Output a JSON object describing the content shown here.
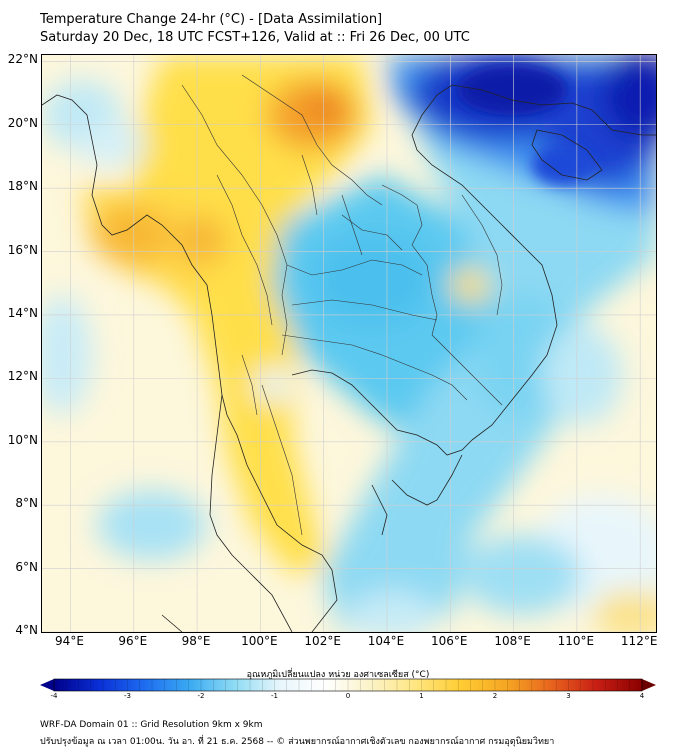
{
  "header": {
    "title_line1": "Temperature Change 24-hr (°C) - [Data Assimilation]",
    "title_line2": "Saturday 20 Dec, 18 UTC FCST+126, Valid at :: Fri 26 Dec, 00 UTC"
  },
  "map": {
    "lat_labels": [
      "22°N",
      "20°N",
      "18°N",
      "16°N",
      "14°N",
      "12°N",
      "10°N",
      "8°N",
      "6°N",
      "4°N"
    ],
    "lon_labels": [
      "94°E",
      "96°E",
      "98°E",
      "100°E",
      "102°E",
      "104°E",
      "106°E",
      "108°E",
      "110°E",
      "112°E"
    ],
    "lat_values": [
      22,
      20,
      18,
      16,
      14,
      12,
      10,
      8,
      6,
      4
    ],
    "lon_values": [
      94,
      96,
      98,
      100,
      102,
      104,
      106,
      108,
      110,
      112
    ],
    "extent": {
      "lon_min": 93.1,
      "lon_max": 112.5,
      "lat_min": 4,
      "lat_max": 22.2
    },
    "field_description": "24-hr temperature change; warming over Myanmar/western Thailand, cooling over NE Thailand, Laos, Vietnam coast and South China Sea, strong cooling over southern China"
  },
  "colorbar": {
    "title": "อุณหภูมิเปลี่ยนแปลง หน่วย องศาเซลเซียส (°C)",
    "tick_labels": [
      "-4",
      "-3",
      "-2",
      "-1",
      "0",
      "1",
      "2",
      "3",
      "4"
    ],
    "min": -4,
    "max": 4,
    "colors": [
      "#00008b",
      "#0a2fd6",
      "#1e6cf0",
      "#3aaaf2",
      "#8fdcf4",
      "#e8f6fb",
      "#ffffff",
      "#fbf3c8",
      "#ffe680",
      "#ffcc33",
      "#f5a623",
      "#e8641e",
      "#c81e14",
      "#8b0000"
    ]
  },
  "footer": {
    "line1": "WRF-DA Domain 01 :: Grid Resolution 9km x 9km",
    "line2": "ปรับปรุงข้อมูล ณ เวลา 01:00น. วัน อา. ที่ 21 ธ.ค. 2568 -- © ส่วนพยากรณ์อากาศเชิงตัวเลข กองพยากรณ์อากาศ กรมอุตุนิยมวิทยา"
  }
}
